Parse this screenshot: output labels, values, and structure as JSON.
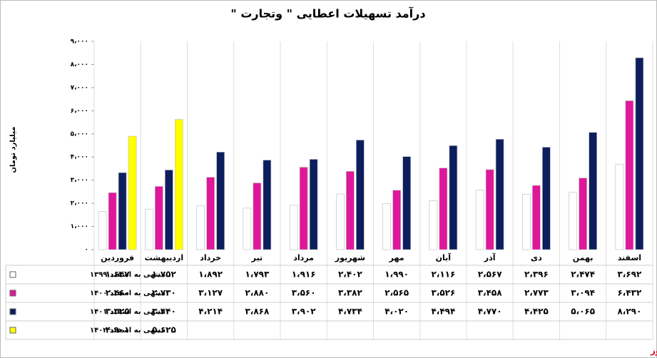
{
  "chart_data": {
    "type": "bar",
    "title": "درآمد تسهیلات اعطایی \" وتجارت \"",
    "y_label": "میلیارد تومان",
    "source": "بورس نیوز",
    "categories": [
      "فروردین",
      "اردیبهشت",
      "خرداد",
      "تیر",
      "مرداد",
      "شهریور",
      "مهر",
      "آبان",
      "آذر",
      "دی",
      "بهمن",
      "اسفند"
    ],
    "ylim": [
      0,
      9000
    ],
    "yticks": [
      {
        "value": 0,
        "label": "۰"
      },
      {
        "value": 1000,
        "label": "۱،۰۰۰"
      },
      {
        "value": 2000,
        "label": "۲،۰۰۰"
      },
      {
        "value": 3000,
        "label": "۳،۰۰۰"
      },
      {
        "value": 4000,
        "label": "۴،۰۰۰"
      },
      {
        "value": 5000,
        "label": "۵،۰۰۰"
      },
      {
        "value": 6000,
        "label": "۶،۰۰۰"
      },
      {
        "value": 7000,
        "label": "۷،۰۰۰"
      },
      {
        "value": 8000,
        "label": "۸،۰۰۰"
      },
      {
        "value": 9000,
        "label": "۹،۰۰۰"
      }
    ],
    "series": [
      {
        "name": "منتهی به اسفند ۱۳۹۹",
        "color": "#ffffff",
        "values": [
          1647,
          1752,
          1892,
          1793,
          1916,
          2402,
          1990,
          2116,
          2567,
          2396,
          2474,
          3692
        ],
        "value_labels": [
          "۱،۶۴۷",
          "۱،۷۵۲",
          "۱،۸۹۲",
          "۱،۷۹۳",
          "۱،۹۱۶",
          "۲،۴۰۲",
          "۱،۹۹۰",
          "۲،۱۱۶",
          "۲،۵۶۷",
          "۲،۳۹۶",
          "۲،۴۷۴",
          "۳،۶۹۲"
        ]
      },
      {
        "name": "منتهی به اسفند ۱۴۰۰",
        "color": "#e0169b",
        "values": [
          2460,
          2730,
          3127,
          2880,
          3560,
          3382,
          2565,
          3526,
          3458,
          2773,
          3094,
          6432
        ],
        "value_labels": [
          "۲،۴۶۰",
          "۲،۷۳۰",
          "۳،۱۲۷",
          "۲،۸۸۰",
          "۳،۵۶۰",
          "۳،۳۸۲",
          "۲،۵۶۵",
          "۳،۵۲۶",
          "۳،۴۵۸",
          "۲،۷۷۳",
          "۳،۰۹۴",
          "۶،۴۳۲"
        ]
      },
      {
        "name": "منتهی به اسفند ۱۴۰۱",
        "color": "#0d1e5e",
        "values": [
          3325,
          3440,
          4214,
          3868,
          3902,
          4734,
          4020,
          4494,
          4770,
          4425,
          5065,
          8290
        ],
        "value_labels": [
          "۳،۳۲۵",
          "۳،۴۴۰",
          "۴،۲۱۴",
          "۳،۸۶۸",
          "۳،۹۰۲",
          "۴،۷۳۴",
          "۴،۰۲۰",
          "۴،۴۹۴",
          "۴،۷۷۰",
          "۴،۴۲۵",
          "۵،۰۶۵",
          "۸،۲۹۰"
        ]
      },
      {
        "name": "منتهی به اسفند ۱۴۰۲",
        "color": "#ffff00",
        "values": [
          4901,
          5625,
          null,
          null,
          null,
          null,
          null,
          null,
          null,
          null,
          null,
          null
        ],
        "value_labels": [
          "۴،۹۰۱",
          "۵،۶۲۵",
          null,
          null,
          null,
          null,
          null,
          null,
          null,
          null,
          null,
          null
        ]
      }
    ]
  }
}
